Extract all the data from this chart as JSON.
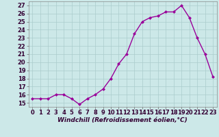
{
  "x": [
    0,
    1,
    2,
    3,
    4,
    5,
    6,
    7,
    8,
    9,
    10,
    11,
    12,
    13,
    14,
    15,
    16,
    17,
    18,
    19,
    20,
    21,
    22,
    23
  ],
  "y": [
    15.5,
    15.5,
    15.5,
    16.0,
    16.0,
    15.5,
    14.8,
    15.5,
    16.0,
    16.7,
    18.0,
    19.8,
    21.0,
    23.5,
    25.0,
    25.5,
    25.7,
    26.2,
    26.2,
    27.0,
    25.5,
    23.0,
    21.0,
    18.2
  ],
  "line_color": "#990099",
  "marker": "D",
  "marker_size": 2.0,
  "bg_color": "#cce8e8",
  "grid_color": "#aacccc",
  "xlabel": "Windchill (Refroidissement éolien,°C)",
  "ylim": [
    14.5,
    27.5
  ],
  "xlim": [
    -0.5,
    23.5
  ],
  "yticks": [
    15,
    16,
    17,
    18,
    19,
    20,
    21,
    22,
    23,
    24,
    25,
    26,
    27
  ],
  "xticks": [
    0,
    1,
    2,
    3,
    4,
    5,
    6,
    7,
    8,
    9,
    10,
    11,
    12,
    13,
    14,
    15,
    16,
    17,
    18,
    19,
    20,
    21,
    22,
    23
  ],
  "xlabel_fontsize": 6.5,
  "tick_fontsize": 6.0,
  "linewidth": 1.0
}
